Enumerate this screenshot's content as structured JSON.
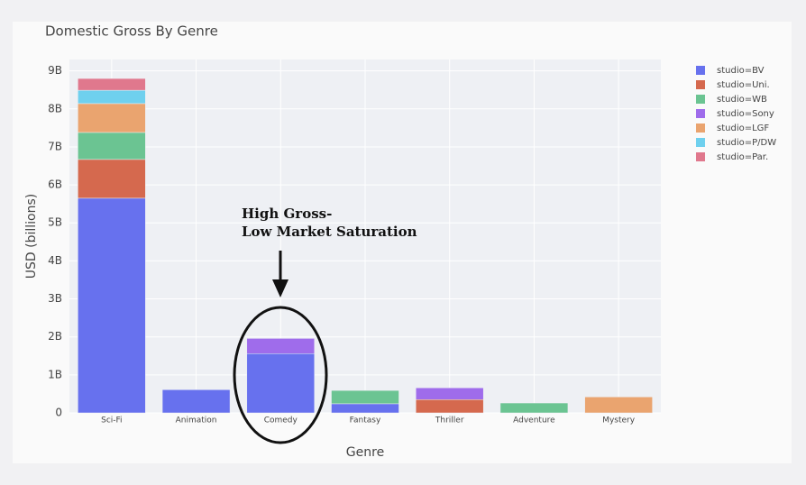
{
  "chart_data": {
    "type": "bar",
    "stacked": true,
    "title": "Domestic Gross By Genre",
    "x_label": "Genre",
    "y_label": "USD (billions)",
    "categories": [
      "Sci-Fi",
      "Animation",
      "Comedy",
      "Fantasy",
      "Thriller",
      "Adventure",
      "Mystery"
    ],
    "series": [
      {
        "name": "studio=BV",
        "color": "#6771ee",
        "values": [
          5.65,
          0.61,
          1.56,
          0.24,
          null,
          null,
          null
        ]
      },
      {
        "name": "studio=Uni.",
        "color": "#d5694e",
        "values": [
          1.02,
          null,
          null,
          null,
          0.35,
          null,
          null
        ]
      },
      {
        "name": "studio=WB",
        "color": "#6bc492",
        "values": [
          0.71,
          null,
          null,
          0.35,
          null,
          0.26,
          null
        ]
      },
      {
        "name": "studio=Sony",
        "color": "#9f6ceb",
        "values": [
          null,
          null,
          0.4,
          null,
          0.31,
          null,
          null
        ]
      },
      {
        "name": "studio=LGF",
        "color": "#eaa46f",
        "values": [
          0.76,
          null,
          null,
          null,
          null,
          null,
          0.42
        ]
      },
      {
        "name": "studio=P/DW",
        "color": "#6fd0ee",
        "values": [
          0.35,
          null,
          null,
          null,
          null,
          null,
          null
        ]
      },
      {
        "name": "studio=Par.",
        "color": "#e0788d",
        "values": [
          0.31,
          null,
          null,
          null,
          null,
          null,
          null
        ]
      }
    ],
    "ylim": [
      0,
      9.3
    ],
    "yticks": [
      0,
      {
        "value": 1,
        "label": "1B"
      },
      {
        "value": 2,
        "label": "2B"
      },
      {
        "value": 3,
        "label": "3B"
      },
      {
        "value": 4,
        "label": "4B"
      },
      {
        "value": 5,
        "label": "5B"
      },
      {
        "value": 6,
        "label": "6B"
      },
      {
        "value": 7,
        "label": "7B"
      },
      {
        "value": 8,
        "label": "8B"
      },
      {
        "value": 9,
        "label": "9B"
      }
    ],
    "grid": true,
    "legend": "right",
    "annotation": {
      "lines": [
        "High Gross-",
        "Low Market Saturation"
      ]
    }
  }
}
